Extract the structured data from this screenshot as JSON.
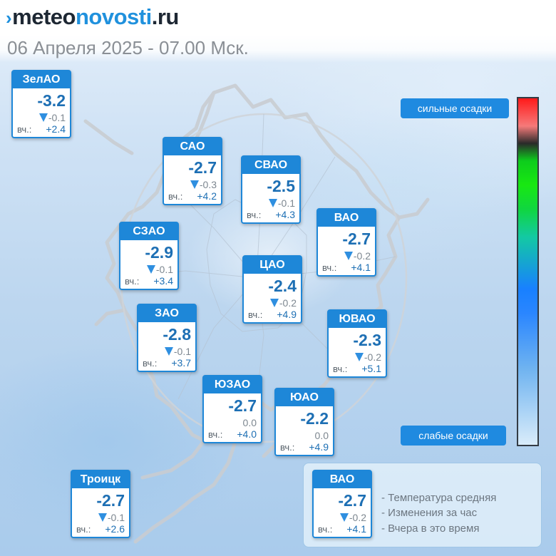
{
  "header": {
    "logo_mark": "›",
    "logo_part1": "meteo",
    "logo_part2": "novosti",
    "logo_part3": ".ru",
    "subtitle": "06 Апреля 2025 - 07.00 Мск."
  },
  "colors": {
    "accent": "#1e87d8",
    "temperature_text": "#1d6fb4",
    "down_triangle": "#2f8fe0"
  },
  "icons": {
    "decrease": "down-triangle-icon"
  },
  "districts": [
    {
      "name": "ЗелАО",
      "temp": "-3.2",
      "change": "-0.1",
      "trend": "down",
      "yesterday_label": "вч.:",
      "yesterday": "+2.4"
    },
    {
      "name": "САО",
      "temp": "-2.7",
      "change": "-0.3",
      "trend": "down",
      "yesterday_label": "вч.:",
      "yesterday": "+4.2"
    },
    {
      "name": "СВАО",
      "temp": "-2.5",
      "change": "-0.1",
      "trend": "down",
      "yesterday_label": "вч.:",
      "yesterday": "+4.3"
    },
    {
      "name": "ВАО",
      "temp": "-2.7",
      "change": "-0.2",
      "trend": "down",
      "yesterday_label": "вч.:",
      "yesterday": "+4.1"
    },
    {
      "name": "СЗАО",
      "temp": "-2.9",
      "change": "-0.1",
      "trend": "down",
      "yesterday_label": "вч.:",
      "yesterday": "+3.4"
    },
    {
      "name": "ЦАО",
      "temp": "-2.4",
      "change": "-0.2",
      "trend": "down",
      "yesterday_label": "вч.:",
      "yesterday": "+4.9"
    },
    {
      "name": "ЗАО",
      "temp": "-2.8",
      "change": "-0.1",
      "trend": "down",
      "yesterday_label": "вч.:",
      "yesterday": "+3.7"
    },
    {
      "name": "ЮВАО",
      "temp": "-2.3",
      "change": "-0.2",
      "trend": "down",
      "yesterday_label": "вч.:",
      "yesterday": "+5.1"
    },
    {
      "name": "ЮЗАО",
      "temp": "-2.7",
      "change": "0.0",
      "trend": "none",
      "yesterday_label": "вч.:",
      "yesterday": "+4.0"
    },
    {
      "name": "ЮАО",
      "temp": "-2.2",
      "change": "0.0",
      "trend": "none",
      "yesterday_label": "вч.:",
      "yesterday": "+4.9"
    },
    {
      "name": "Троицк",
      "temp": "-2.7",
      "change": "-0.1",
      "trend": "down",
      "yesterday_label": "вч.:",
      "yesterday": "+2.6"
    }
  ],
  "precip_scale": {
    "top_label": "сильные осадки",
    "bottom_label": "слабые осадки"
  },
  "legend": {
    "sample": {
      "name": "ВАО",
      "temp": "-2.7",
      "change": "-0.2",
      "trend": "down",
      "yesterday_label": "вч.:",
      "yesterday": "+4.1"
    },
    "lines": [
      "- Температура средняя",
      "- Изменения за час",
      "- Вчера в это время"
    ]
  }
}
